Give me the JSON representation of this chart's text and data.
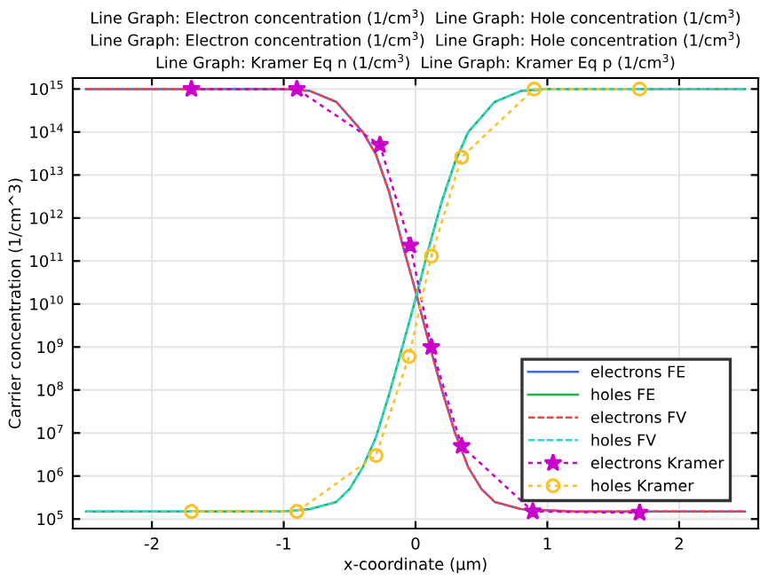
{
  "chart_data": {
    "type": "line",
    "title": "Line Graph: Electron concentration (1/cm$^{3}$)  Line Graph: Hole concentration (1/cm$^{3}$)\nLine Graph: Electron concentration (1/cm$^{3}$)  Line Graph: Hole concentration (1/cm$^{3}$)\nLine Graph: Kramer Eq n (1/cm$^{3}$)  Line Graph: Kramer Eq p (1/cm$^{3}$)",
    "xlabel": "x-coordinate (µm)",
    "ylabel": "Carrier concentration (1/cm^3)",
    "log": "y",
    "grid": true,
    "legend": "bottom right",
    "xlim": [
      -2.6,
      2.6
    ],
    "xticks": [
      -2,
      -1,
      0,
      1,
      2
    ],
    "ylim": [
      60000.0,
      1800000000000000.0
    ],
    "yticks": [
      {
        "value": 100000.0,
        "label": "10$^{5}$"
      },
      {
        "value": 1000000.0,
        "label": "10$^{6}$"
      },
      {
        "value": 10000000.0,
        "label": "10$^{7}$"
      },
      {
        "value": 100000000.0,
        "label": "10$^{8}$"
      },
      {
        "value": 1000000000.0,
        "label": "10$^{9}$"
      },
      {
        "value": 10000000000.0,
        "label": "10$^{10}$"
      },
      {
        "value": 100000000000.0,
        "label": "10$^{11}$"
      },
      {
        "value": 1000000000000.0,
        "label": "10$^{12}$"
      },
      {
        "value": 10000000000000.0,
        "label": "10$^{13}$"
      },
      {
        "value": 100000000000000.0,
        "label": "10$^{14}$"
      },
      {
        "value": 1000000000000000.0,
        "label": "10$^{15}$"
      }
    ],
    "series": [
      {
        "name": "electrons FE",
        "color": "#4169e1",
        "line_style": "solid",
        "marker": "none",
        "x": [
          -2.5,
          -1,
          -0.8,
          -0.6,
          -0.4,
          -0.3,
          -0.2,
          -0.1,
          0,
          0.1,
          0.2,
          0.3,
          0.4,
          0.5,
          0.6,
          0.8,
          1.2,
          2.5
        ],
        "values": [
          1000000000000000.0,
          1000000000000000.0,
          900000000000000.0,
          500000000000000.0,
          100000000000000.0,
          30000000000000.0,
          4000000000000.0,
          250000000000.0,
          20000000000.0,
          1300000000.0,
          100000000.0,
          10000000.0,
          1600000.0,
          500000.0,
          250000.0,
          170000.0,
          150000.0,
          150000.0
        ]
      },
      {
        "name": "holes FE",
        "color": "#22b14c",
        "line_style": "solid",
        "marker": "none",
        "x": [
          -2.5,
          -1,
          -0.8,
          -0.6,
          -0.5,
          -0.4,
          -0.3,
          -0.2,
          -0.1,
          0,
          0.1,
          0.2,
          0.3,
          0.4,
          0.6,
          0.8,
          1,
          2.5
        ],
        "values": [
          150000.0,
          150000.0,
          170000.0,
          250000.0,
          500000.0,
          1600000.0,
          8000000.0,
          80000000.0,
          1000000000.0,
          13000000000.0,
          200000000000.0,
          2500000000000.0,
          20000000000000.0,
          100000000000000.0,
          500000000000000.0,
          900000000000000.0,
          1000000000000000.0,
          1000000000000000.0
        ]
      },
      {
        "name": "electrons FV",
        "color": "#ff4040",
        "line_style": "dashed",
        "marker": "none",
        "x": [
          -2.5,
          -1,
          -0.8,
          -0.6,
          -0.4,
          -0.3,
          -0.2,
          -0.1,
          0,
          0.1,
          0.2,
          0.3,
          0.4,
          0.5,
          0.6,
          0.8,
          1.2,
          2.5
        ],
        "values": [
          1000000000000000.0,
          1000000000000000.0,
          900000000000000.0,
          500000000000000.0,
          100000000000000.0,
          30000000000000.0,
          4000000000000.0,
          250000000000.0,
          20000000000.0,
          1300000000.0,
          100000000.0,
          10000000.0,
          1600000.0,
          500000.0,
          250000.0,
          170000.0,
          150000.0,
          150000.0
        ]
      },
      {
        "name": "holes FV",
        "color": "#30d5d5",
        "line_style": "dashed",
        "marker": "none",
        "x": [
          -2.5,
          -1,
          -0.8,
          -0.6,
          -0.5,
          -0.4,
          -0.3,
          -0.2,
          -0.1,
          0,
          0.1,
          0.2,
          0.3,
          0.4,
          0.6,
          0.8,
          1,
          2.5
        ],
        "values": [
          150000.0,
          150000.0,
          170000.0,
          250000.0,
          500000.0,
          1600000.0,
          8000000.0,
          80000000.0,
          1000000000.0,
          13000000000.0,
          200000000000.0,
          2500000000000.0,
          20000000000000.0,
          100000000000000.0,
          500000000000000.0,
          900000000000000.0,
          1000000000000000.0,
          1000000000000000.0
        ]
      },
      {
        "name": "electrons Kramer",
        "color": "#cc00cc",
        "line_style": "dotted",
        "marker": "star",
        "x": [
          -1.7,
          -0.9,
          -0.27,
          -0.04,
          0.12,
          0.35,
          0.89,
          1.7
        ],
        "values": [
          1000000000000000.0,
          1000000000000000.0,
          50000000000000.0,
          230000000000.0,
          1000000000.0,
          5000000.0,
          150000.0,
          140000.0
        ]
      },
      {
        "name": "holes Kramer",
        "color": "#ffc020",
        "line_style": "dotted",
        "marker": "circle",
        "x": [
          -1.7,
          -0.9,
          -0.3,
          -0.05,
          0.12,
          0.35,
          0.9,
          1.7
        ],
        "values": [
          150000.0,
          150000.0,
          3000000.0,
          600000000.0,
          130000000000.0,
          26000000000000.0,
          1000000000000000.0,
          1000000000000000.0
        ]
      }
    ]
  }
}
